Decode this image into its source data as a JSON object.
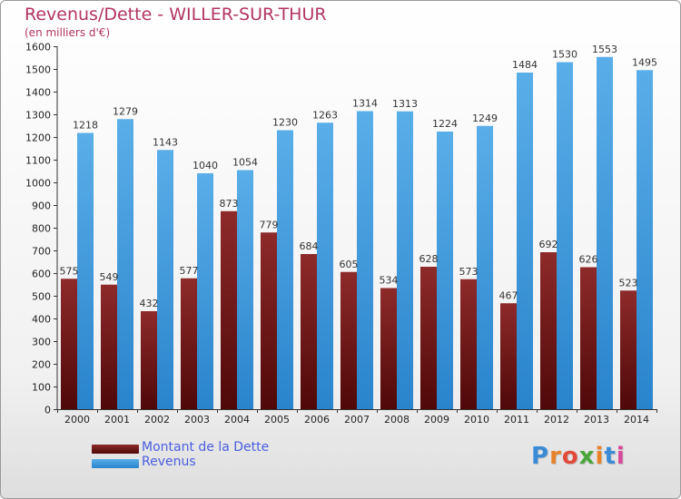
{
  "title": "Revenus/Dette - WILLER-SUR-THUR",
  "subtitle": "(en milliers d'€)",
  "logo": "Proxiti",
  "colors": {
    "title": "#b23463",
    "dette": "#7a1414",
    "revenus": "#2f8fd8",
    "legend_text": "#4a5ee0"
  },
  "legend": {
    "dette": "Montant de la Dette",
    "revenus": "Revenus"
  },
  "chart_data": {
    "type": "bar",
    "title": "Revenus/Dette - WILLER-SUR-THUR",
    "ylabel": "(en milliers d'€)",
    "xlabel": "",
    "ylim": [
      0,
      1600
    ],
    "yticks": [
      0,
      100,
      200,
      300,
      400,
      500,
      600,
      700,
      800,
      900,
      1000,
      1100,
      1200,
      1300,
      1400,
      1500,
      1600
    ],
    "grid": false,
    "legend_position": "bottom-left",
    "categories": [
      "2000",
      "2001",
      "2002",
      "2003",
      "2004",
      "2005",
      "2006",
      "2007",
      "2008",
      "2009",
      "2010",
      "2011",
      "2012",
      "2013",
      "2014"
    ],
    "series": [
      {
        "name": "Montant de la Dette",
        "values": [
          575,
          549,
          432,
          577,
          873,
          779,
          684,
          605,
          534,
          628,
          573,
          467,
          692,
          626,
          523
        ]
      },
      {
        "name": "Revenus",
        "values": [
          1218,
          1279,
          1143,
          1040,
          1054,
          1230,
          1263,
          1314,
          1313,
          1224,
          1249,
          1484,
          1530,
          1553,
          1495
        ]
      }
    ]
  }
}
